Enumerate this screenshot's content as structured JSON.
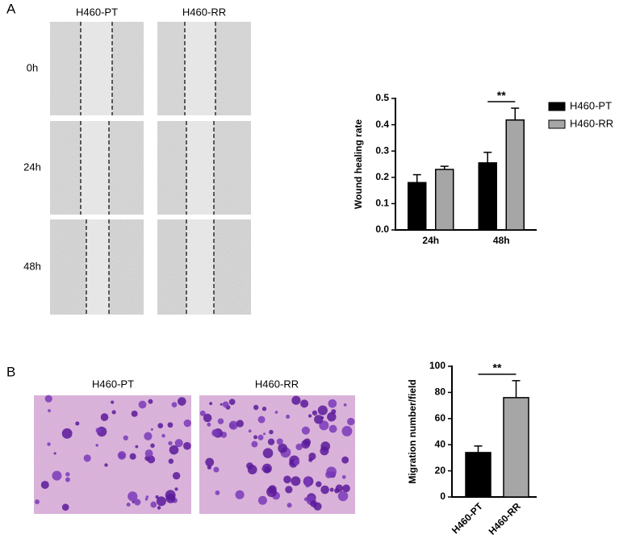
{
  "figure": {
    "panel_a": {
      "label": "A",
      "columns": [
        "H460-PT",
        "H460-RR"
      ],
      "rows": [
        "0h",
        "24h",
        "48h"
      ]
    },
    "panel_b": {
      "label": "B",
      "columns": [
        "H460-PT",
        "H460-RR"
      ]
    }
  },
  "chart_data": [
    {
      "type": "grouped_bar",
      "ylabel": "Wound healing rate",
      "categories": [
        "24h",
        "48h"
      ],
      "series": [
        {
          "name": "H460-PT",
          "color": "#000000",
          "values": [
            0.18,
            0.255
          ],
          "errors": [
            0.03,
            0.04
          ]
        },
        {
          "name": "H460-RR",
          "color": "#a6a6a6",
          "values": [
            0.23,
            0.418
          ],
          "errors": [
            0.012,
            0.045
          ]
        }
      ],
      "ylim": [
        0,
        0.5
      ],
      "yticks": [
        {
          "value": 0,
          "label": "0.0"
        },
        0.1,
        0.2,
        0.3,
        0.4,
        0.5
      ],
      "annotation": "**",
      "legend": "right"
    },
    {
      "type": "bar",
      "ylabel": "Migration number/field",
      "categories": [
        "H460-PT",
        "H460-RR"
      ],
      "values": [
        34,
        76
      ],
      "errors": [
        5,
        13
      ],
      "colors": [
        "#000000",
        "#a6a6a6"
      ],
      "ylim": [
        0,
        100
      ],
      "yticks": [
        0,
        20,
        40,
        60,
        80,
        100
      ],
      "annotation": "**"
    }
  ]
}
